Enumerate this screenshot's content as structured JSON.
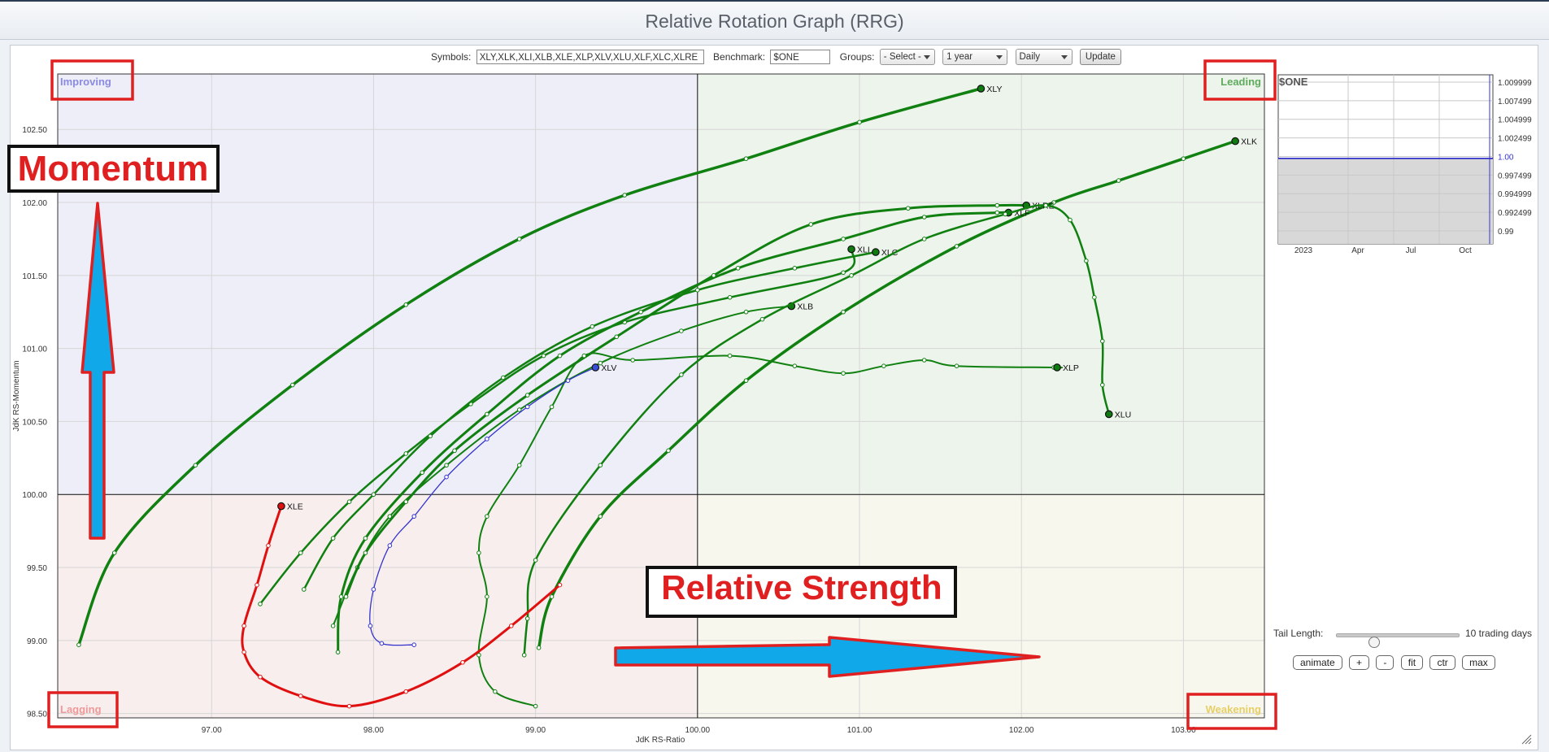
{
  "window": {
    "title": "Relative Rotation Graph (RRG)"
  },
  "controls": {
    "symbols_label": "Symbols:",
    "symbols_value": "XLY,XLK,XLI,XLB,XLE,XLP,XLV,XLU,XLF,XLC,XLRE",
    "benchmark_label": "Benchmark:",
    "benchmark_value": "$ONE",
    "groups_label": "Groups:",
    "groups_value": "- Select -",
    "period_value": "1 year",
    "frequency_value": "Daily",
    "update_label": "Update"
  },
  "tail": {
    "label": "Tail Length:",
    "value_text": "10 trading days",
    "slider_fraction": 0.3
  },
  "buttons": [
    "animate",
    "+",
    "-",
    "fit",
    "ctr",
    "max"
  ],
  "annotations": {
    "momentum": "Momentum",
    "relative_strength": "Relative Strength",
    "accent_red": "#e02020",
    "arrow_blue": "#10a8e8"
  },
  "chart_data": {
    "type": "scatter",
    "title": "",
    "xlabel": "JdK RS-Ratio",
    "ylabel": "JdK RS-Momentum",
    "xlim": [
      96.05,
      103.5
    ],
    "ylim": [
      98.47,
      102.88
    ],
    "center": [
      100,
      100
    ],
    "x_ticks": [
      "97.00",
      "98.00",
      "99.00",
      "100.00",
      "101.00",
      "102.00",
      "103.00"
    ],
    "y_ticks": [
      "98.50",
      "99.00",
      "99.50",
      "100.00",
      "100.50",
      "101.00",
      "101.50",
      "102.00",
      "102.50"
    ],
    "quadrants": {
      "improving": {
        "label": "Improving",
        "fill": "#eeeef9",
        "text": "#8b8be0"
      },
      "leading": {
        "label": "Leading",
        "fill": "#edf4ec",
        "text": "#5eab5e"
      },
      "lagging": {
        "label": "Lagging",
        "fill": "#f8eeee",
        "text": "#ee9a9a"
      },
      "weakening": {
        "label": "Weakening",
        "fill": "#f8f7ee",
        "text": "#e6cf66"
      }
    },
    "series": [
      {
        "name": "XLY",
        "color": "#108010",
        "width": 3.5,
        "points": [
          [
            96.18,
            98.97
          ],
          [
            96.4,
            99.6
          ],
          [
            96.9,
            100.2
          ],
          [
            97.5,
            100.75
          ],
          [
            98.2,
            101.3
          ],
          [
            98.9,
            101.75
          ],
          [
            99.55,
            102.05
          ],
          [
            100.3,
            102.3
          ],
          [
            101.0,
            102.55
          ],
          [
            101.75,
            102.78
          ]
        ]
      },
      {
        "name": "XLK",
        "color": "#108010",
        "width": 3.5,
        "points": [
          [
            99.02,
            98.95
          ],
          [
            99.1,
            99.3
          ],
          [
            99.4,
            99.85
          ],
          [
            99.82,
            100.3
          ],
          [
            100.3,
            100.78
          ],
          [
            100.9,
            101.25
          ],
          [
            101.6,
            101.7
          ],
          [
            102.2,
            102.0
          ],
          [
            102.6,
            102.15
          ],
          [
            103.0,
            102.3
          ],
          [
            103.32,
            102.42
          ]
        ]
      },
      {
        "name": "XLI",
        "color": "#108010",
        "width": 2.5,
        "points": [
          [
            97.3,
            99.25
          ],
          [
            97.55,
            99.6
          ],
          [
            97.85,
            99.95
          ],
          [
            98.2,
            100.28
          ],
          [
            98.6,
            100.62
          ],
          [
            99.05,
            100.95
          ],
          [
            99.55,
            101.18
          ],
          [
            100.2,
            101.35
          ],
          [
            100.9,
            101.52
          ],
          [
            100.95,
            101.68
          ]
        ]
      },
      {
        "name": "XLC",
        "color": "#108010",
        "width": 2.5,
        "points": [
          [
            97.57,
            99.35
          ],
          [
            97.75,
            99.7
          ],
          [
            98.0,
            100.0
          ],
          [
            98.35,
            100.4
          ],
          [
            98.8,
            100.8
          ],
          [
            99.35,
            101.15
          ],
          [
            100.0,
            101.4
          ],
          [
            100.6,
            101.55
          ],
          [
            101.1,
            101.66
          ]
        ]
      },
      {
        "name": "XLB",
        "color": "#108010",
        "width": 2,
        "points": [
          [
            97.75,
            99.1
          ],
          [
            97.9,
            99.5
          ],
          [
            98.1,
            99.85
          ],
          [
            98.45,
            100.2
          ],
          [
            98.9,
            100.58
          ],
          [
            99.4,
            100.9
          ],
          [
            99.9,
            101.12
          ],
          [
            100.3,
            101.25
          ],
          [
            100.58,
            101.29
          ]
        ]
      },
      {
        "name": "XLF",
        "color": "#108010",
        "width": 3,
        "points": [
          [
            97.78,
            98.92
          ],
          [
            97.8,
            99.3
          ],
          [
            97.95,
            99.7
          ],
          [
            98.3,
            100.15
          ],
          [
            98.7,
            100.55
          ],
          [
            99.15,
            100.95
          ],
          [
            99.65,
            101.25
          ],
          [
            100.25,
            101.55
          ],
          [
            100.9,
            101.75
          ],
          [
            101.4,
            101.9
          ],
          [
            101.85,
            101.93
          ],
          [
            101.92,
            101.93
          ]
        ]
      },
      {
        "name": "XLRE",
        "color": "#108010",
        "width": 3,
        "points": [
          [
            97.83,
            99.3
          ],
          [
            97.95,
            99.6
          ],
          [
            98.2,
            99.95
          ],
          [
            98.5,
            100.3
          ],
          [
            98.95,
            100.68
          ],
          [
            99.5,
            101.08
          ],
          [
            100.1,
            101.5
          ],
          [
            100.7,
            101.85
          ],
          [
            101.3,
            101.96
          ],
          [
            101.85,
            101.98
          ],
          [
            102.03,
            101.98
          ]
        ]
      },
      {
        "name": "XLP",
        "color": "#108010",
        "width": 2,
        "points": [
          [
            99.0,
            98.55
          ],
          [
            98.75,
            98.65
          ],
          [
            98.65,
            98.9
          ],
          [
            98.7,
            99.3
          ],
          [
            98.65,
            99.6
          ],
          [
            98.7,
            99.85
          ],
          [
            98.9,
            100.2
          ],
          [
            99.1,
            100.6
          ],
          [
            99.3,
            100.95
          ],
          [
            99.6,
            100.92
          ],
          [
            100.2,
            100.95
          ],
          [
            100.6,
            100.88
          ],
          [
            100.9,
            100.83
          ],
          [
            101.15,
            100.88
          ],
          [
            101.4,
            100.92
          ],
          [
            101.6,
            100.88
          ],
          [
            102.2,
            100.87
          ],
          [
            102.22,
            100.87
          ]
        ]
      },
      {
        "name": "XLU",
        "color": "#108010",
        "width": 2.5,
        "points": [
          [
            98.93,
            98.9
          ],
          [
            98.95,
            99.15
          ],
          [
            99.0,
            99.55
          ],
          [
            99.4,
            100.2
          ],
          [
            99.9,
            100.82
          ],
          [
            100.4,
            101.2
          ],
          [
            100.95,
            101.5
          ],
          [
            101.4,
            101.75
          ],
          [
            101.9,
            101.92
          ],
          [
            102.15,
            101.98
          ],
          [
            102.3,
            101.88
          ],
          [
            102.4,
            101.6
          ],
          [
            102.45,
            101.35
          ],
          [
            102.5,
            101.05
          ],
          [
            102.5,
            100.75
          ],
          [
            102.54,
            100.55
          ]
        ]
      },
      {
        "name": "XLV",
        "color": "#3333cc",
        "width": 1.3,
        "points": [
          [
            98.25,
            98.97
          ],
          [
            98.05,
            98.98
          ],
          [
            97.98,
            99.1
          ],
          [
            98.0,
            99.35
          ],
          [
            98.1,
            99.65
          ],
          [
            98.25,
            99.85
          ],
          [
            98.45,
            100.12
          ],
          [
            98.7,
            100.38
          ],
          [
            98.95,
            100.6
          ],
          [
            99.2,
            100.78
          ],
          [
            99.37,
            100.87
          ]
        ]
      },
      {
        "name": "XLE",
        "color": "#e01010",
        "width": 3,
        "points": [
          [
            99.15,
            99.38
          ],
          [
            98.85,
            99.1
          ],
          [
            98.55,
            98.85
          ],
          [
            98.2,
            98.65
          ],
          [
            97.85,
            98.55
          ],
          [
            97.55,
            98.62
          ],
          [
            97.3,
            98.75
          ],
          [
            97.2,
            98.92
          ],
          [
            97.2,
            99.1
          ],
          [
            97.28,
            99.38
          ],
          [
            97.35,
            99.65
          ],
          [
            97.43,
            99.92
          ]
        ]
      }
    ],
    "benchmark_mini": {
      "label": "$ONE",
      "y_ticks": [
        "1.009999",
        "1.007499",
        "1.004999",
        "1.002499",
        "1.00",
        "0.997499",
        "0.994999",
        "0.992499",
        "0.99"
      ],
      "x_ticks": [
        "2023",
        "Apr",
        "Jul",
        "Oct"
      ],
      "value": 1.0
    }
  }
}
